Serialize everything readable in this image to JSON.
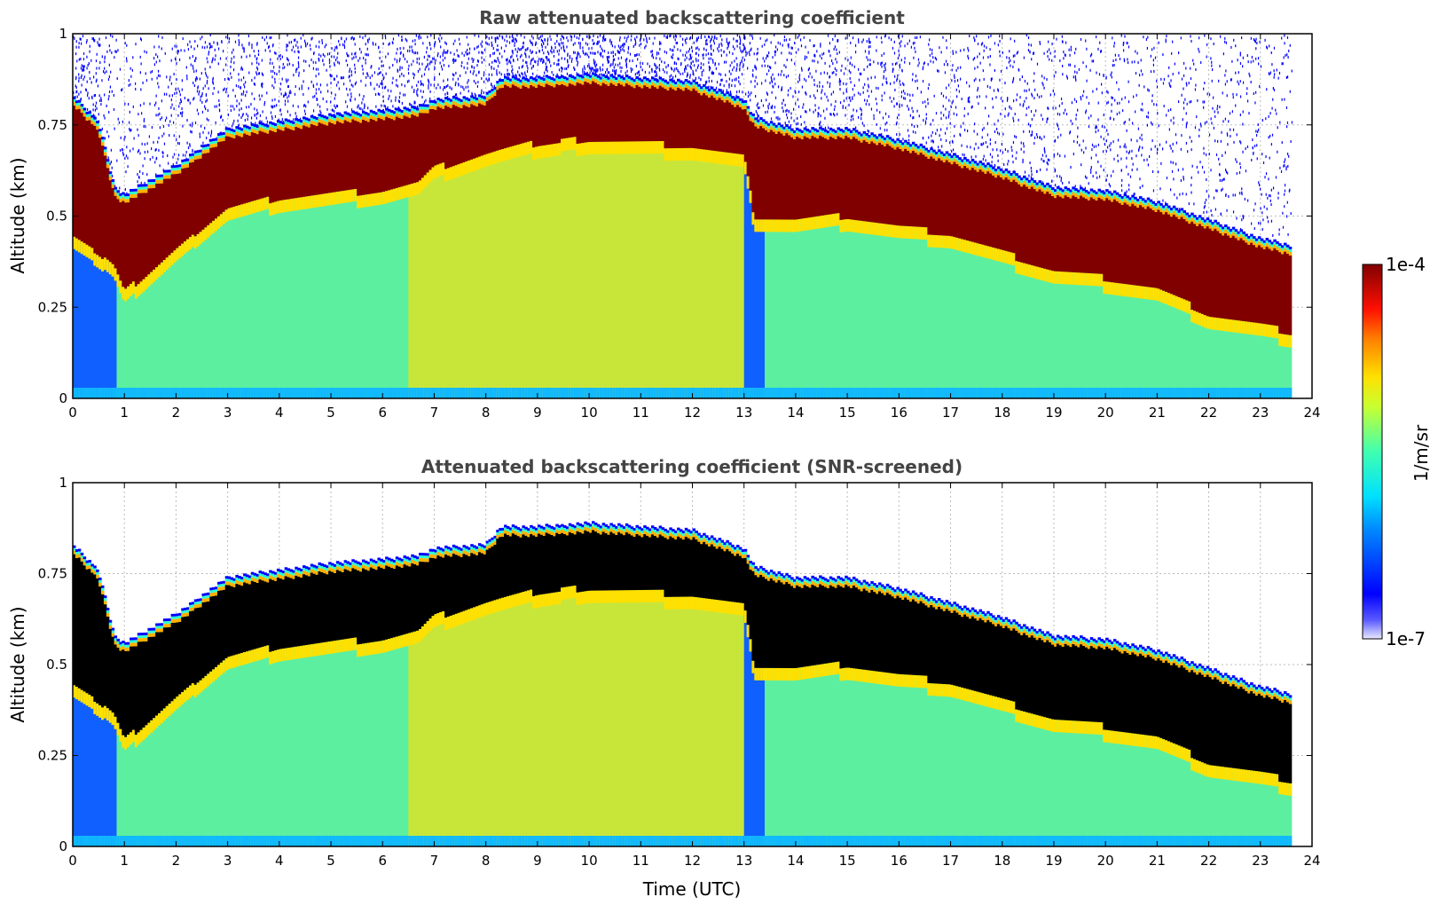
{
  "chart_data": [
    {
      "type": "heatmap",
      "title": "Raw attenuated backscattering coefficient",
      "xlabel": "",
      "ylabel": "Altitude (km)",
      "xlim": [
        0,
        24
      ],
      "ylim": [
        0,
        1
      ],
      "xticks": [
        "0",
        "1",
        "2",
        "3",
        "4",
        "5",
        "6",
        "7",
        "8",
        "9",
        "10",
        "11",
        "12",
        "13",
        "14",
        "15",
        "16",
        "17",
        "18",
        "19",
        "20",
        "21",
        "22",
        "23",
        "24"
      ],
      "yticks": [
        "0",
        "0.25",
        "0.5",
        "0.75",
        "1"
      ],
      "data_end_time": 23.6,
      "cloud_top_km": {
        "time": [
          0,
          0.5,
          0.8,
          1,
          2,
          3,
          4,
          5,
          6,
          6.7,
          7,
          8,
          8.3,
          9,
          10,
          11,
          12,
          13,
          13.2,
          14,
          15,
          16,
          17,
          18,
          19,
          20,
          21,
          22,
          23,
          23.6
        ],
        "value": [
          0.83,
          0.76,
          0.58,
          0.56,
          0.64,
          0.74,
          0.76,
          0.78,
          0.79,
          0.8,
          0.82,
          0.83,
          0.88,
          0.88,
          0.89,
          0.88,
          0.87,
          0.82,
          0.77,
          0.74,
          0.74,
          0.71,
          0.67,
          0.63,
          0.58,
          0.57,
          0.54,
          0.49,
          0.44,
          0.42
        ]
      },
      "cloud_base_km": {
        "time": [
          0,
          0.5,
          0.8,
          1,
          2,
          3,
          4,
          5,
          6,
          6.7,
          7,
          8,
          8.3,
          9,
          10,
          11,
          12,
          13,
          13.2,
          14,
          15,
          16,
          17,
          18,
          19,
          20,
          21,
          22,
          23,
          23.6
        ],
        "value": [
          0.45,
          0.4,
          0.36,
          0.29,
          0.41,
          0.52,
          0.55,
          0.56,
          0.57,
          0.59,
          0.63,
          0.67,
          0.68,
          0.7,
          0.71,
          0.7,
          0.69,
          0.66,
          0.5,
          0.49,
          0.5,
          0.47,
          0.45,
          0.4,
          0.35,
          0.33,
          0.3,
          0.23,
          0.2,
          0.18
        ]
      },
      "colormap": "jet",
      "masked_color": "",
      "noise_above_cloud": true
    },
    {
      "type": "heatmap",
      "title": "Attenuated backscattering coefficient (SNR-screened)",
      "xlabel": "Time (UTC)",
      "ylabel": "Altitude (km)",
      "xlim": [
        0,
        24
      ],
      "ylim": [
        0,
        1
      ],
      "xticks": [
        "0",
        "1",
        "2",
        "3",
        "4",
        "5",
        "6",
        "7",
        "8",
        "9",
        "10",
        "11",
        "12",
        "13",
        "14",
        "15",
        "16",
        "17",
        "18",
        "19",
        "20",
        "21",
        "22",
        "23",
        "24"
      ],
      "yticks": [
        "0",
        "0.25",
        "0.5",
        "0.75",
        "1"
      ],
      "data_end_time": 23.6,
      "cloud_top_km": {
        "time": [
          0,
          0.5,
          0.8,
          1,
          2,
          3,
          4,
          5,
          6,
          6.7,
          7,
          8,
          8.3,
          9,
          10,
          11,
          12,
          13,
          13.2,
          14,
          15,
          16,
          17,
          18,
          19,
          20,
          21,
          22,
          23,
          23.6
        ],
        "value": [
          0.83,
          0.76,
          0.58,
          0.56,
          0.64,
          0.74,
          0.76,
          0.78,
          0.79,
          0.8,
          0.82,
          0.83,
          0.88,
          0.88,
          0.89,
          0.88,
          0.87,
          0.82,
          0.77,
          0.74,
          0.74,
          0.71,
          0.67,
          0.63,
          0.58,
          0.57,
          0.54,
          0.49,
          0.44,
          0.42
        ]
      },
      "cloud_base_km": {
        "time": [
          0,
          0.5,
          0.8,
          1,
          2,
          3,
          4,
          5,
          6,
          6.7,
          7,
          8,
          8.3,
          9,
          10,
          11,
          12,
          13,
          13.2,
          14,
          15,
          16,
          17,
          18,
          19,
          20,
          21,
          22,
          23,
          23.6
        ],
        "value": [
          0.45,
          0.4,
          0.36,
          0.29,
          0.41,
          0.52,
          0.55,
          0.56,
          0.57,
          0.59,
          0.63,
          0.67,
          0.68,
          0.7,
          0.71,
          0.7,
          0.69,
          0.66,
          0.5,
          0.49,
          0.5,
          0.47,
          0.45,
          0.4,
          0.35,
          0.33,
          0.3,
          0.23,
          0.2,
          0.18
        ]
      },
      "colormap": "jet",
      "masked_color": "#000000",
      "noise_above_cloud": false
    }
  ],
  "colorbar": {
    "label": "1/m/sr",
    "max_label": "1e-4",
    "min_label": "1e-7",
    "scale": "log",
    "range": [
      1e-07,
      0.0001
    ]
  },
  "colors": {
    "title": "#444444",
    "grid": "#bbbbbb",
    "background": "#ffffff"
  }
}
